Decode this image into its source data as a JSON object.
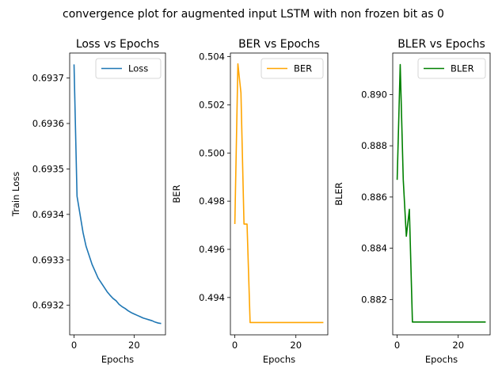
{
  "figure": {
    "title": "convergence plot for augmented input LSTM with non frozen bit as 0"
  },
  "chart_data": [
    {
      "type": "line",
      "title": "Loss vs Epochs",
      "xlabel": "Epochs",
      "ylabel": "Train Loss",
      "xlim": [
        -1.45,
        30.45
      ],
      "ylim": [
        0.693135,
        0.693755
      ],
      "xticks": [
        0,
        20
      ],
      "yticks": [
        0.6932,
        0.6933,
        0.6934,
        0.6935,
        0.6936,
        0.6937
      ],
      "ytick_labels": [
        "0.6932",
        "0.6933",
        "0.6934",
        "0.6935",
        "0.6936",
        "0.6937"
      ],
      "legend_position": "top-right",
      "grid": false,
      "series": [
        {
          "name": "Loss",
          "color": "#1f77b4",
          "x": [
            0,
            1,
            2,
            3,
            4,
            5,
            6,
            7,
            8,
            9,
            10,
            11,
            12,
            13,
            14,
            15,
            16,
            17,
            18,
            19,
            20,
            21,
            22,
            23,
            24,
            25,
            26,
            27,
            28,
            29
          ],
          "values": [
            0.69373,
            0.69344,
            0.6934,
            0.69336,
            0.69333,
            0.69331,
            0.69329,
            0.693275,
            0.69326,
            0.69325,
            0.69324,
            0.69323,
            0.693222,
            0.693215,
            0.69321,
            0.693202,
            0.693197,
            0.693193,
            0.693188,
            0.693184,
            0.693181,
            0.693178,
            0.693175,
            0.693172,
            0.69317,
            0.693168,
            0.693166,
            0.693163,
            0.693161,
            0.69316
          ]
        }
      ]
    },
    {
      "type": "line",
      "title": "BER vs Epochs",
      "xlabel": "Epochs",
      "ylabel": "BER",
      "xlim": [
        -1.45,
        30.45
      ],
      "ylim": [
        0.49245,
        0.50415
      ],
      "xticks": [
        0,
        20
      ],
      "yticks": [
        0.494,
        0.496,
        0.498,
        0.5,
        0.502,
        0.504
      ],
      "ytick_labels": [
        "0.494",
        "0.496",
        "0.498",
        "0.500",
        "0.502",
        "0.504"
      ],
      "legend_position": "top-right",
      "grid": false,
      "series": [
        {
          "name": "BER",
          "color": "#ffa500",
          "x": [
            0,
            1,
            2,
            3,
            4,
            5,
            6,
            7,
            8,
            9,
            10,
            11,
            12,
            13,
            14,
            15,
            16,
            17,
            18,
            19,
            20,
            21,
            22,
            23,
            24,
            25,
            26,
            27,
            28,
            29
          ],
          "values": [
            0.49705,
            0.5037,
            0.5025,
            0.49705,
            0.49705,
            0.49296,
            0.49296,
            0.49296,
            0.49296,
            0.49296,
            0.49296,
            0.49296,
            0.49296,
            0.49296,
            0.49296,
            0.49296,
            0.49296,
            0.49296,
            0.49296,
            0.49296,
            0.49296,
            0.49296,
            0.49296,
            0.49296,
            0.49296,
            0.49296,
            0.49296,
            0.49296,
            0.49296,
            0.49296
          ]
        }
      ]
    },
    {
      "type": "line",
      "title": "BLER vs Epochs",
      "xlabel": "Epochs",
      "ylabel": "BLER",
      "xlim": [
        -1.45,
        30.45
      ],
      "ylim": [
        0.88062,
        0.89162
      ],
      "xticks": [
        0,
        20
      ],
      "yticks": [
        0.882,
        0.884,
        0.886,
        0.888,
        0.89
      ],
      "ytick_labels": [
        "0.882",
        "0.884",
        "0.886",
        "0.888",
        "0.890"
      ],
      "legend_position": "top-right",
      "grid": false,
      "series": [
        {
          "name": "BLER",
          "color": "#008000",
          "x": [
            0,
            1,
            2,
            3,
            4,
            5,
            6,
            7,
            8,
            9,
            10,
            11,
            12,
            13,
            14,
            15,
            16,
            17,
            18,
            19,
            20,
            21,
            22,
            23,
            24,
            25,
            26,
            27,
            28,
            29
          ],
          "values": [
            0.88667,
            0.89117,
            0.88667,
            0.88447,
            0.88552,
            0.88112,
            0.88112,
            0.88112,
            0.88112,
            0.88112,
            0.88112,
            0.88112,
            0.88112,
            0.88112,
            0.88112,
            0.88112,
            0.88112,
            0.88112,
            0.88112,
            0.88112,
            0.88112,
            0.88112,
            0.88112,
            0.88112,
            0.88112,
            0.88112,
            0.88112,
            0.88112,
            0.88112,
            0.88112
          ]
        }
      ]
    }
  ]
}
